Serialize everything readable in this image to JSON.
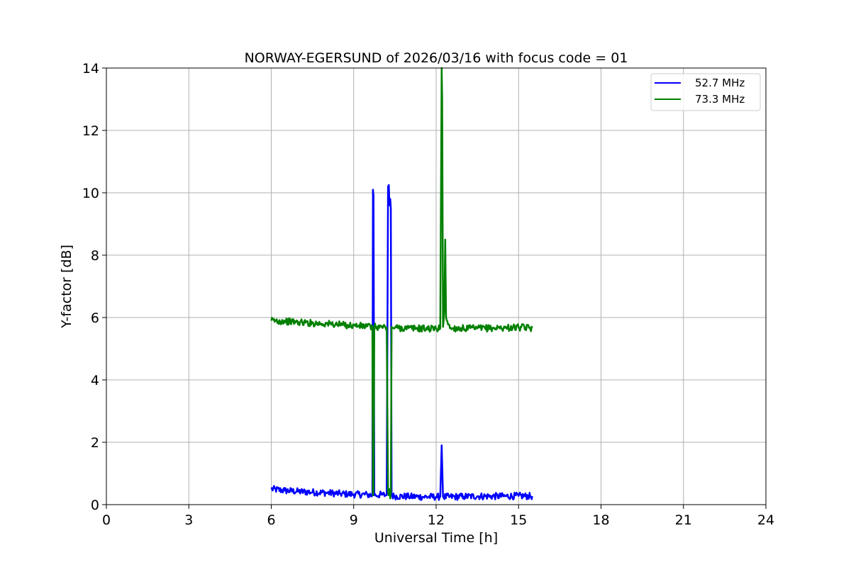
{
  "chart_data": {
    "type": "line",
    "title": "NORWAY-EGERSUND of 2026/03/16 with focus code = 01",
    "xlabel": "Universal Time [h]",
    "ylabel": "Y-factor [dB]",
    "xlim": [
      0,
      24
    ],
    "ylim": [
      0,
      14
    ],
    "xticks": [
      0,
      3,
      6,
      9,
      12,
      15,
      18,
      21,
      24
    ],
    "yticks": [
      0,
      2,
      4,
      6,
      8,
      10,
      12,
      14
    ],
    "grid": true,
    "legend_position": "top-right",
    "series": [
      {
        "name": "52.7 MHz",
        "color": "#0000ff",
        "x": [
          6.0,
          6.5,
          7.0,
          7.5,
          8.0,
          8.5,
          9.0,
          9.5,
          9.68,
          9.7,
          9.72,
          9.75,
          9.8,
          10.0,
          10.2,
          10.25,
          10.28,
          10.3,
          10.33,
          10.35,
          10.38,
          10.4,
          10.5,
          11.0,
          11.5,
          12.0,
          12.15,
          12.2,
          12.25,
          12.5,
          13.0,
          13.5,
          14.0,
          14.5,
          15.0,
          15.5
        ],
        "y": [
          0.5,
          0.45,
          0.42,
          0.4,
          0.38,
          0.35,
          0.33,
          0.32,
          0.3,
          10.1,
          9.9,
          0.3,
          0.3,
          0.32,
          0.3,
          10.2,
          10.25,
          9.6,
          9.8,
          9.5,
          0.3,
          0.28,
          0.27,
          0.26,
          0.25,
          0.25,
          0.25,
          1.9,
          0.25,
          0.25,
          0.26,
          0.27,
          0.27,
          0.27,
          0.28,
          0.27
        ]
      },
      {
        "name": "73.3 MHz",
        "color": "#008000",
        "x": [
          6.0,
          6.5,
          7.0,
          7.5,
          8.0,
          8.5,
          9.0,
          9.5,
          9.68,
          9.7,
          9.72,
          9.75,
          9.8,
          10.0,
          10.2,
          10.25,
          10.28,
          10.3,
          10.33,
          10.35,
          10.38,
          10.4,
          10.5,
          11.0,
          11.5,
          12.0,
          12.15,
          12.2,
          12.22,
          12.25,
          12.3,
          12.33,
          12.36,
          12.5,
          13.0,
          13.5,
          14.0,
          14.5,
          15.0,
          15.5
        ],
        "y": [
          5.9,
          5.88,
          5.85,
          5.82,
          5.8,
          5.77,
          5.74,
          5.72,
          5.7,
          0.3,
          0.5,
          5.7,
          5.7,
          5.7,
          5.68,
          0.4,
          0.3,
          0.5,
          0.2,
          0.4,
          5.7,
          5.68,
          5.67,
          5.66,
          5.65,
          5.64,
          5.65,
          14.0,
          13.0,
          5.7,
          6.3,
          8.5,
          6.0,
          5.66,
          5.65,
          5.65,
          5.66,
          5.67,
          5.68,
          5.67
        ]
      }
    ]
  }
}
